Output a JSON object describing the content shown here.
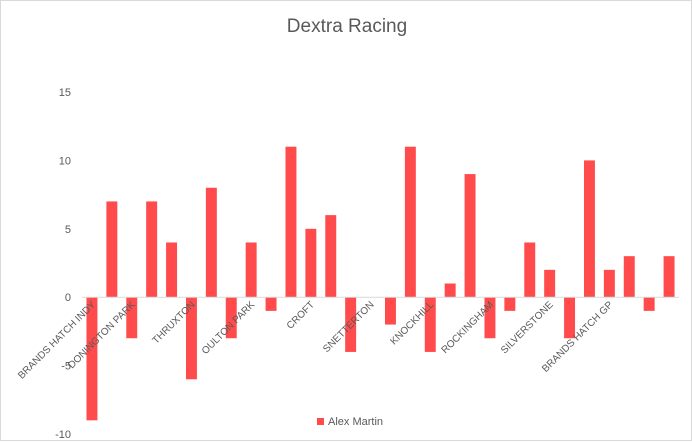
{
  "chart_data": {
    "type": "bar",
    "title": "Dextra Racing",
    "xlabel": "",
    "ylabel": "",
    "ylim": [
      -10,
      15
    ],
    "yticks": [
      -10,
      -5,
      0,
      5,
      10,
      15
    ],
    "grid": false,
    "legend": "bottom",
    "bar_color": "#ff4b4b",
    "axis_color": "#d9d9d9",
    "text_color": "#595959",
    "categories": [
      "BRANDS HATCH INDY",
      "",
      "DONINGTON PARK",
      "",
      "",
      "THRUXTON",
      "",
      "",
      "OULTON PARK",
      "",
      "",
      "CROFT",
      "",
      "",
      "SNETTERTON",
      "",
      "",
      "KNOCKHILL",
      "",
      "",
      "ROCKINGHAM",
      "",
      "",
      "SILVERSTONE",
      "",
      "",
      "BRANDS HATCH GP",
      "",
      "",
      ""
    ],
    "series": [
      {
        "name": "Alex Martin",
        "values": [
          -9,
          7,
          -3,
          7,
          4,
          -6,
          8,
          -3,
          4,
          -1,
          11,
          5,
          6,
          -4,
          0,
          -2,
          11,
          -4,
          1,
          9,
          -3,
          -1,
          4,
          2,
          -3,
          10,
          2,
          3,
          -1,
          3
        ]
      }
    ]
  }
}
